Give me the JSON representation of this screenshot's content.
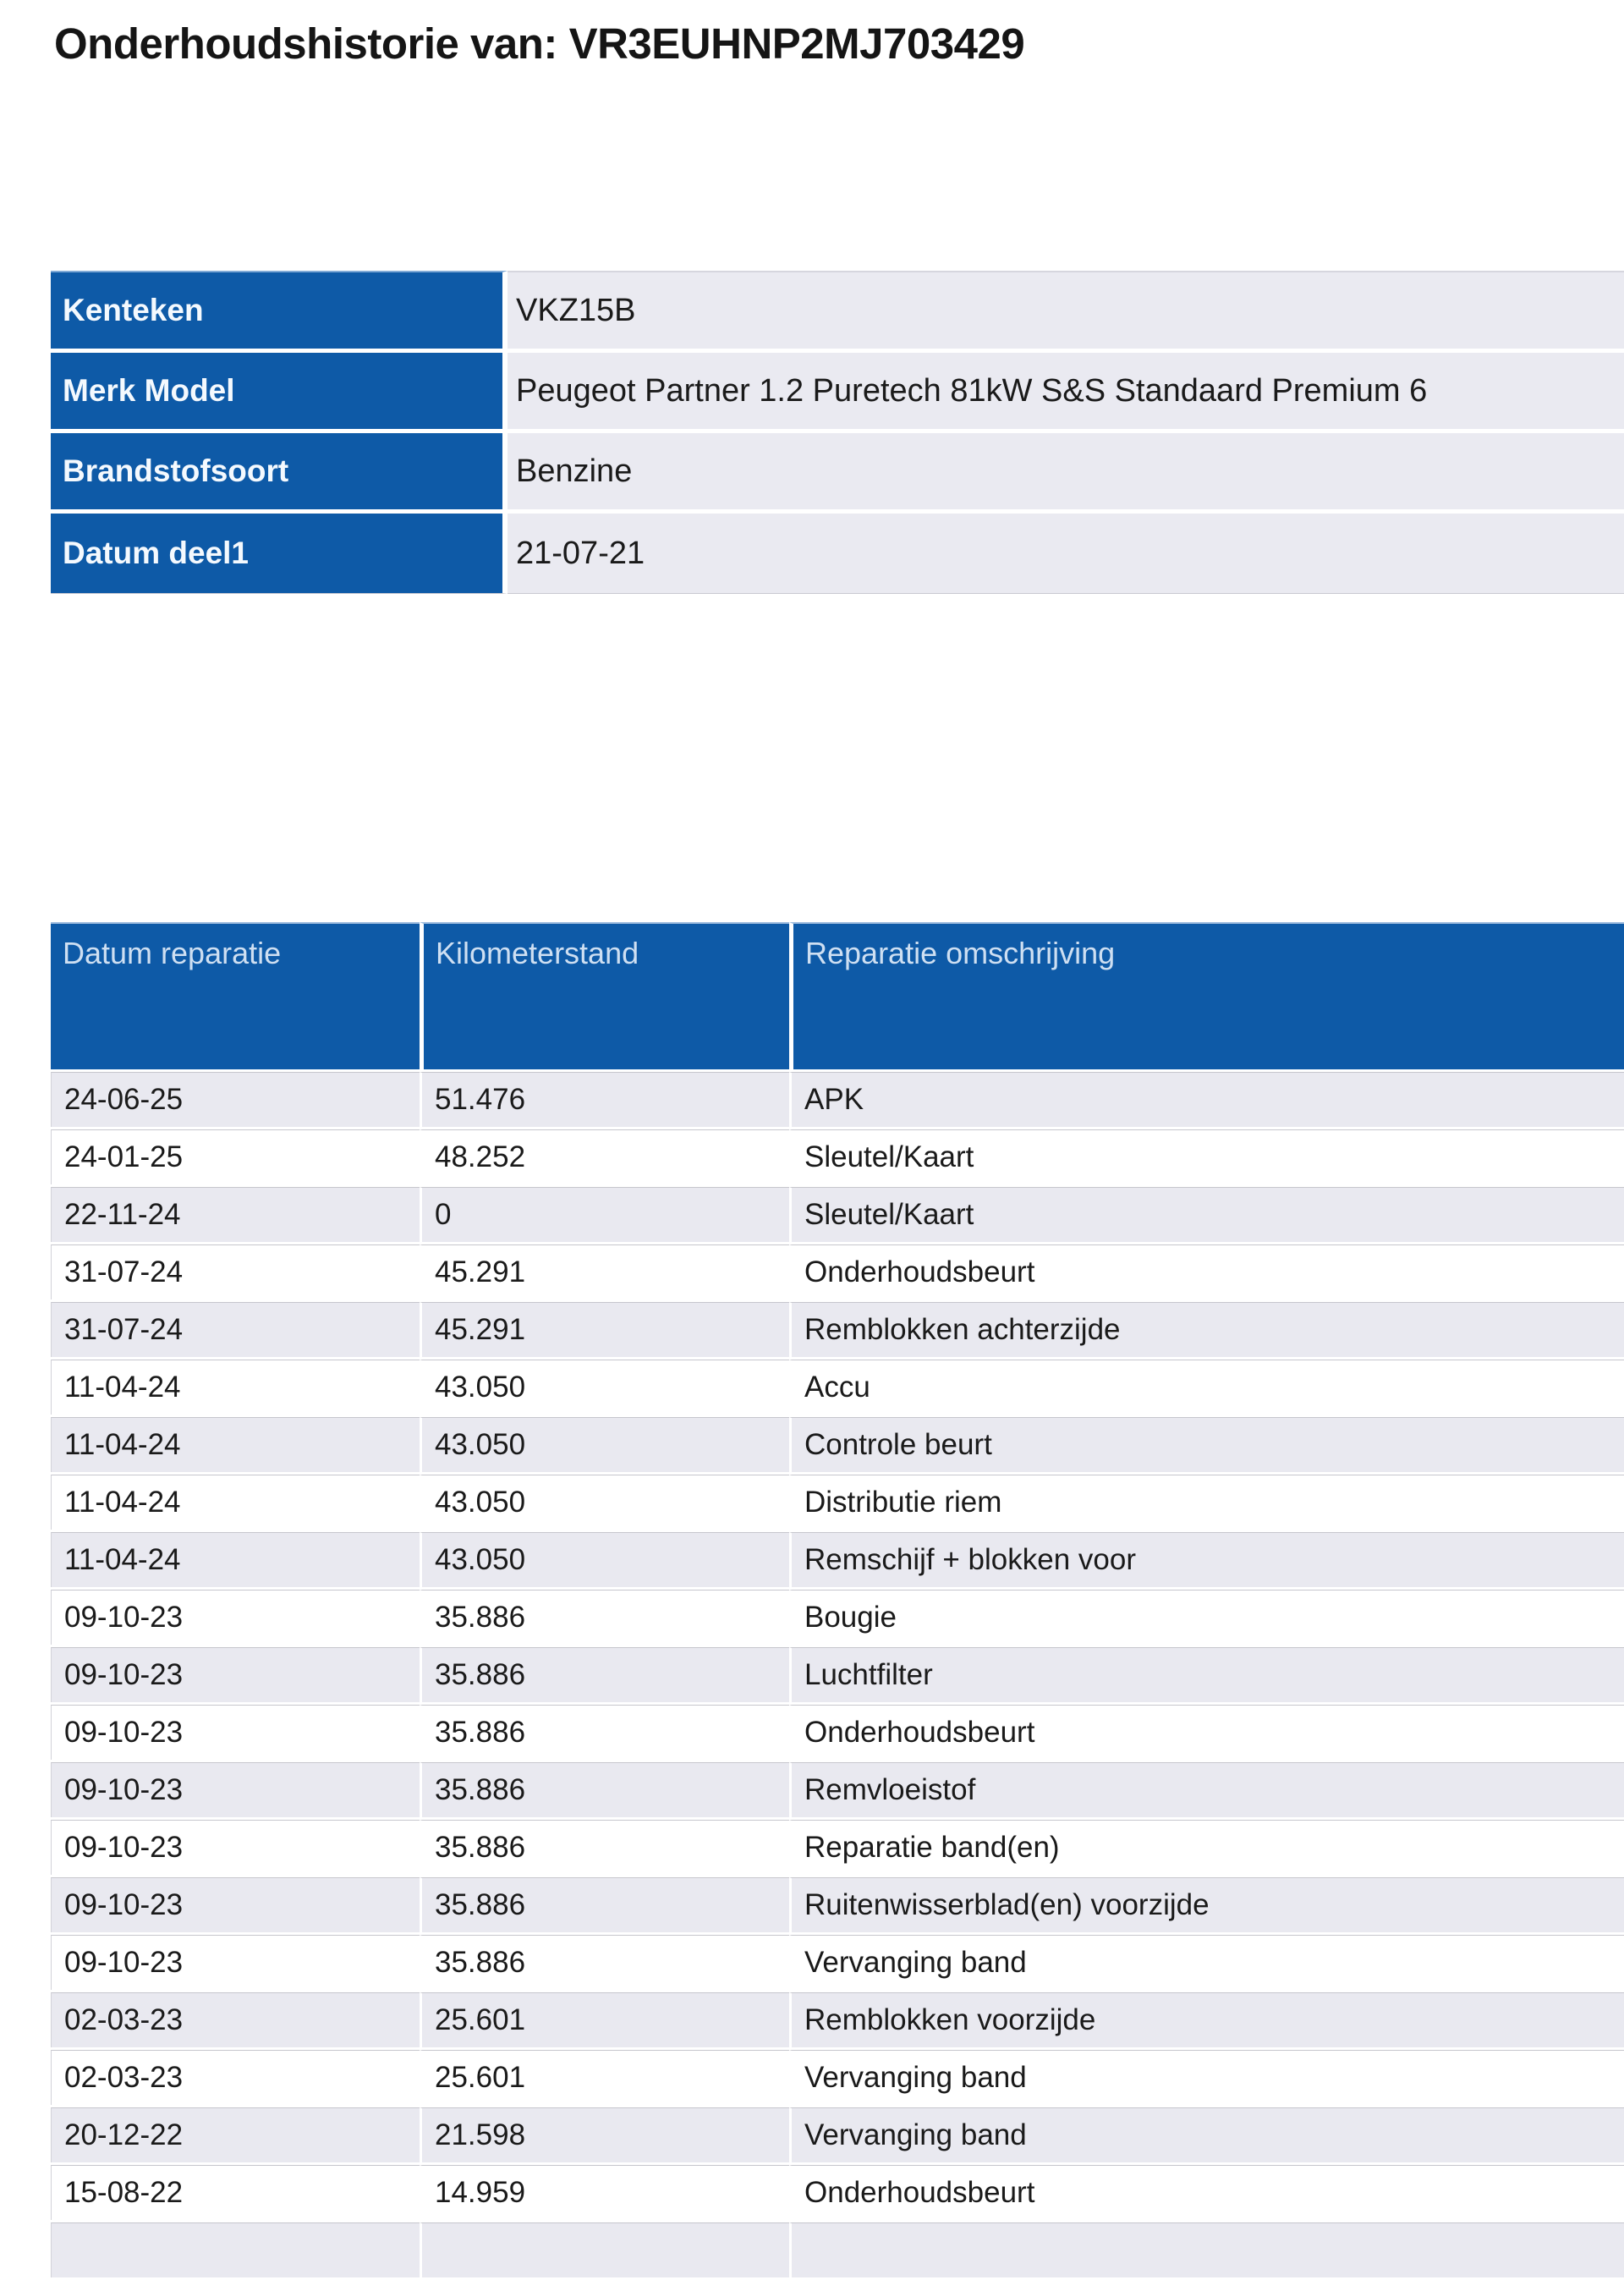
{
  "page_title": "Onderhoudshistorie van: VR3EUHNP2MJ703429",
  "vehicle_info": {
    "rows": [
      {
        "label": "Kenteken",
        "value": "VKZ15B"
      },
      {
        "label": "Merk Model",
        "value": "Peugeot Partner 1.2 Puretech 81kW S&S Standaard Premium 6"
      },
      {
        "label": "Brandstofsoort",
        "value": "Benzine"
      },
      {
        "label": "Datum deel1",
        "value": "21-07-21"
      }
    ]
  },
  "history_table": {
    "columns": [
      "Datum reparatie",
      "Kilometerstand",
      "Reparatie omschrijving"
    ],
    "rows": [
      {
        "date": "24-06-25",
        "km": "51.476",
        "description": "APK"
      },
      {
        "date": "24-01-25",
        "km": "48.252",
        "description": "Sleutel/Kaart"
      },
      {
        "date": "22-11-24",
        "km": "0",
        "description": "Sleutel/Kaart"
      },
      {
        "date": "31-07-24",
        "km": "45.291",
        "description": "Onderhoudsbeurt"
      },
      {
        "date": "31-07-24",
        "km": "45.291",
        "description": "Remblokken achterzijde"
      },
      {
        "date": "11-04-24",
        "km": "43.050",
        "description": "Accu"
      },
      {
        "date": "11-04-24",
        "km": "43.050",
        "description": "Controle beurt"
      },
      {
        "date": "11-04-24",
        "km": "43.050",
        "description": "Distributie riem"
      },
      {
        "date": "11-04-24",
        "km": "43.050",
        "description": "Remschijf + blokken voor"
      },
      {
        "date": "09-10-23",
        "km": "35.886",
        "description": "Bougie"
      },
      {
        "date": "09-10-23",
        "km": "35.886",
        "description": "Luchtfilter"
      },
      {
        "date": "09-10-23",
        "km": "35.886",
        "description": "Onderhoudsbeurt"
      },
      {
        "date": "09-10-23",
        "km": "35.886",
        "description": "Remvloeistof"
      },
      {
        "date": "09-10-23",
        "km": "35.886",
        "description": "Reparatie band(en)"
      },
      {
        "date": "09-10-23",
        "km": "35.886",
        "description": "Ruitenwisserblad(en) voorzijde"
      },
      {
        "date": "09-10-23",
        "km": "35.886",
        "description": "Vervanging band"
      },
      {
        "date": "02-03-23",
        "km": "25.601",
        "description": "Remblokken voorzijde"
      },
      {
        "date": "02-03-23",
        "km": "25.601",
        "description": "Vervanging band"
      },
      {
        "date": "20-12-22",
        "km": "21.598",
        "description": "Vervanging band"
      },
      {
        "date": "15-08-22",
        "km": "14.959",
        "description": "Onderhoudsbeurt"
      }
    ],
    "partial_bottom_row": true
  },
  "colors": {
    "header_blue": "#0E5AA7",
    "header_highlight": "#9AB9DD",
    "header_text": "#CEDFF2",
    "label_text": "#F4F9FE",
    "row_alt_gray": "#E9E9F0",
    "row_white": "#FFFFFF",
    "separator_line": "#C6C6CD",
    "value_cell_gray": "#EAEAF1",
    "text_dark": "#1A1A1A"
  }
}
